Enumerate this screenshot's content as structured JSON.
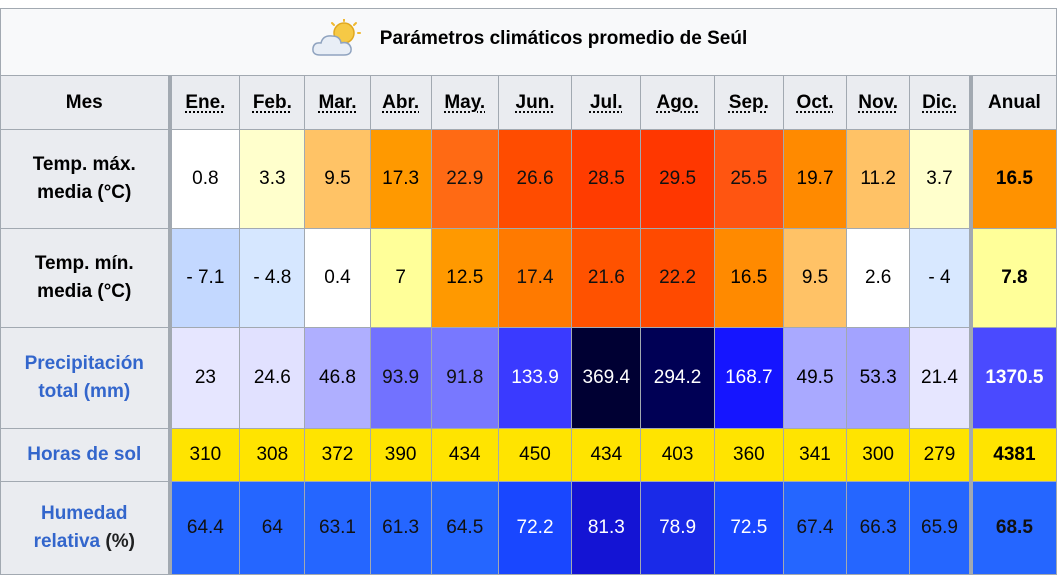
{
  "title": "Parámetros climáticos promedio de Seúl",
  "title_icon": "partly-cloudy-icon",
  "header": {
    "row_label": "Mes",
    "months": [
      "Ene.",
      "Feb.",
      "Mar.",
      "Abr.",
      "May.",
      "Jun.",
      "Jul.",
      "Ago.",
      "Sep.",
      "Oct.",
      "Nov.",
      "Dic."
    ],
    "annual": "Anual"
  },
  "rows": [
    {
      "key": "tmax",
      "label_line1": "Temp. máx.",
      "label_line2": "media (°C)",
      "label_is_link": false,
      "values": [
        "0.8",
        "3.3",
        "9.5",
        "17.3",
        "22.9",
        "26.6",
        "28.5",
        "29.5",
        "25.5",
        "19.7",
        "11.2",
        "3.7"
      ],
      "annual": "16.5",
      "colors": [
        "#ffffff",
        "#ffffcc",
        "#ffc366",
        "#ff9900",
        "#ff6a14",
        "#ff4c00",
        "#ff3c00",
        "#ff3700",
        "#ff5511",
        "#ff8a00",
        "#ffc266",
        "#ffffcc"
      ],
      "annual_color": "#ff9200"
    },
    {
      "key": "tmin",
      "label_line1": "Temp. mín.",
      "label_line2": "media (°C)",
      "label_is_link": false,
      "values": [
        "- 7.1",
        "- 4.8",
        "0.4",
        "7",
        "12.5",
        "17.4",
        "21.6",
        "22.2",
        "16.5",
        "9.5",
        "2.6",
        "- 4"
      ],
      "annual": "7.8",
      "colors": [
        "#c3d8ff",
        "#d6e7ff",
        "#ffffff",
        "#ffff99",
        "#ff9900",
        "#ff7a00",
        "#ff5200",
        "#ff4a00",
        "#ff8a00",
        "#ffc266",
        "#ffffff",
        "#d8e8ff"
      ],
      "annual_color": "#ffff99"
    },
    {
      "key": "prec",
      "label_line1": "Precipitación",
      "label_line2": "total (mm)",
      "label_is_link": true,
      "values": [
        "23",
        "24.6",
        "46.8",
        "93.9",
        "91.8",
        "133.9",
        "369.4",
        "294.2",
        "168.7",
        "49.5",
        "53.3",
        "21.4"
      ],
      "annual": "1370.5",
      "colors": [
        "#e6e6ff",
        "#e1e1ff",
        "#afafff",
        "#7272ff",
        "#7878ff",
        "#3a3aff",
        "#000033",
        "#000055",
        "#1515ff",
        "#a9a9ff",
        "#a3a3ff",
        "#e6e6ff"
      ],
      "annual_color": "#4a4aff"
    },
    {
      "key": "sun",
      "label_line1": "Horas de sol",
      "label_line2": "",
      "label_is_link": true,
      "values": [
        "310",
        "308",
        "372",
        "390",
        "434",
        "450",
        "434",
        "403",
        "360",
        "341",
        "300",
        "279"
      ],
      "annual": "4381",
      "colors": [
        "#ffe400",
        "#ffe400",
        "#ffe400",
        "#ffe400",
        "#ffe400",
        "#ffe400",
        "#ffe400",
        "#ffe400",
        "#ffe400",
        "#ffe400",
        "#ffe400",
        "#ffe400"
      ],
      "annual_color": "#ffe400"
    },
    {
      "key": "hum",
      "label_line1": "Humedad",
      "label_line2": "relativa",
      "label_suffix": "(%)",
      "label_is_link": true,
      "values": [
        "64.4",
        "64",
        "63.1",
        "61.3",
        "64.5",
        "72.2",
        "81.3",
        "78.9",
        "72.5",
        "67.4",
        "66.3",
        "65.9"
      ],
      "annual": "68.5",
      "colors": [
        "#2566ff",
        "#2566ff",
        "#2566ff",
        "#2566ff",
        "#2566ff",
        "#1947ff",
        "#1414d4",
        "#1a2ae8",
        "#1947ff",
        "#2566ff",
        "#2566ff",
        "#2566ff"
      ],
      "annual_color": "#2566ff"
    }
  ],
  "colors": {
    "border": "#a2a9b1",
    "header_bg": "#eaecf0",
    "caption_bg": "#f8f9fa",
    "link": "#3366cc"
  }
}
